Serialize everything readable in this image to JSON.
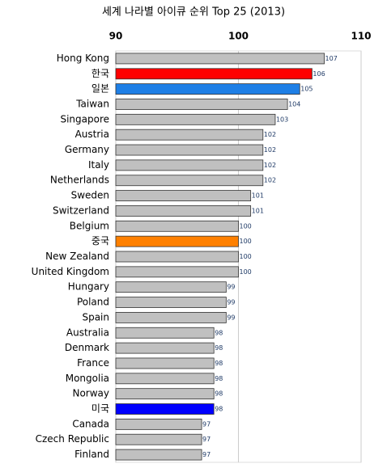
{
  "chart_data": {
    "type": "hbar",
    "title": "세계 나라별 아이큐 순위 Top 25 (2013)",
    "categories": [
      "Hong Kong",
      "한국",
      "일본",
      "Taiwan",
      "Singapore",
      "Austria",
      "Germany",
      "Italy",
      "Netherlands",
      "Sweden",
      "Switzerland",
      "Belgium",
      "중국",
      "New Zealand",
      "United Kingdom",
      "Hungary",
      "Poland",
      "Spain",
      "Australia",
      "Denmark",
      "France",
      "Mongolia",
      "Norway",
      "미국",
      "Canada",
      "Czech Republic",
      "Finland"
    ],
    "values": [
      107,
      106,
      105,
      104,
      103,
      102,
      102,
      102,
      102,
      101,
      101,
      100,
      100,
      100,
      100,
      99,
      99,
      99,
      98,
      98,
      98,
      98,
      98,
      98,
      97,
      97,
      97
    ],
    "colors": [
      "#c0c0c0",
      "#ff0000",
      "#1e7fe6",
      "#c0c0c0",
      "#c0c0c0",
      "#c0c0c0",
      "#c0c0c0",
      "#c0c0c0",
      "#c0c0c0",
      "#c0c0c0",
      "#c0c0c0",
      "#c0c0c0",
      "#ff8000",
      "#c0c0c0",
      "#c0c0c0",
      "#c0c0c0",
      "#c0c0c0",
      "#c0c0c0",
      "#c0c0c0",
      "#c0c0c0",
      "#c0c0c0",
      "#c0c0c0",
      "#c0c0c0",
      "#0000ff",
      "#c0c0c0",
      "#c0c0c0",
      "#c0c0c0"
    ],
    "xlim": [
      90,
      110
    ],
    "xticks": [
      90,
      100,
      110
    ],
    "grid": true
  }
}
